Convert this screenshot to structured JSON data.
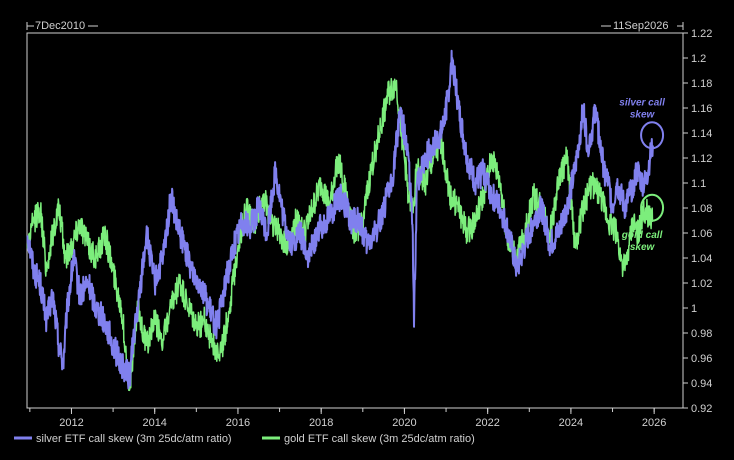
{
  "chart_data": {
    "type": "line",
    "title": "",
    "xlabel": "",
    "ylabel": "",
    "date_range": {
      "start": "7Dec2010",
      "end": "11Sep2026"
    },
    "xlim": [
      "2010-12-07",
      "2026-09-11"
    ],
    "ylim": [
      0.92,
      1.22
    ],
    "y_ticks": [
      "0.92",
      "0.94",
      "0.96",
      "0.98",
      "1",
      "1.02",
      "1.04",
      "1.06",
      "1.08",
      "1.1",
      "1.12",
      "1.14",
      "1.16",
      "1.18",
      "1.2",
      "1.22"
    ],
    "x_ticks": [
      "2012",
      "2014",
      "2016",
      "2018",
      "2020",
      "2022",
      "2024",
      "2026"
    ],
    "grid": false,
    "legend_position": "bottom-left",
    "series": [
      {
        "name": "silver ETF call skew (3m 25dc/atm ratio)",
        "color": "#8080ee",
        "x": [
          2010.94,
          2011.1,
          2011.25,
          2011.4,
          2011.55,
          2011.7,
          2011.8,
          2011.9,
          2012.05,
          2012.2,
          2012.4,
          2012.6,
          2012.8,
          2013.0,
          2013.2,
          2013.4,
          2013.5,
          2013.6,
          2013.8,
          2014.0,
          2014.2,
          2014.4,
          2014.5,
          2014.7,
          2014.9,
          2015.1,
          2015.3,
          2015.5,
          2015.7,
          2015.9,
          2016.1,
          2016.3,
          2016.5,
          2016.7,
          2016.9,
          2017.1,
          2017.3,
          2017.5,
          2017.7,
          2017.9,
          2018.1,
          2018.3,
          2018.5,
          2018.7,
          2018.9,
          2019.1,
          2019.3,
          2019.5,
          2019.7,
          2019.9,
          2020.1,
          2020.2,
          2020.23,
          2020.3,
          2020.5,
          2020.7,
          2020.9,
          2021.05,
          2021.15,
          2021.3,
          2021.5,
          2021.7,
          2021.9,
          2022.1,
          2022.3,
          2022.5,
          2022.7,
          2022.9,
          2023.1,
          2023.3,
          2023.5,
          2023.7,
          2023.9,
          2024.1,
          2024.3,
          2024.4,
          2024.5,
          2024.6,
          2024.7,
          2024.8,
          2024.9,
          2025.0,
          2025.1,
          2025.2,
          2025.3,
          2025.4,
          2025.5,
          2025.6,
          2025.7,
          2025.8,
          2025.9,
          2025.97
        ],
        "values": [
          1.06,
          1.03,
          1.02,
          0.99,
          1.01,
          0.97,
          0.955,
          1.0,
          1.04,
          1.01,
          1.02,
          1.0,
          0.99,
          0.97,
          0.955,
          0.945,
          0.98,
          1.0,
          1.06,
          1.02,
          1.04,
          1.09,
          1.07,
          1.05,
          1.03,
          1.02,
          1.0,
          0.985,
          1.02,
          1.05,
          1.07,
          1.065,
          1.08,
          1.06,
          1.11,
          1.07,
          1.05,
          1.06,
          1.04,
          1.06,
          1.07,
          1.08,
          1.09,
          1.07,
          1.07,
          1.05,
          1.06,
          1.08,
          1.1,
          1.16,
          1.12,
          1.06,
          0.985,
          1.1,
          1.12,
          1.13,
          1.14,
          1.17,
          1.2,
          1.16,
          1.12,
          1.1,
          1.11,
          1.09,
          1.08,
          1.06,
          1.03,
          1.05,
          1.07,
          1.08,
          1.05,
          1.06,
          1.08,
          1.11,
          1.16,
          1.13,
          1.14,
          1.16,
          1.13,
          1.11,
          1.1,
          1.08,
          1.1,
          1.09,
          1.08,
          1.09,
          1.1,
          1.11,
          1.1,
          1.1,
          1.12,
          1.13
        ]
      },
      {
        "name": "gold ETF call skew (3m 25dc/atm ratio)",
        "color": "#7cee7c",
        "x": [
          2010.94,
          2011.1,
          2011.25,
          2011.4,
          2011.55,
          2011.7,
          2011.85,
          2012.0,
          2012.2,
          2012.4,
          2012.6,
          2012.8,
          2013.0,
          2013.2,
          2013.4,
          2013.5,
          2013.6,
          2013.8,
          2014.0,
          2014.2,
          2014.4,
          2014.6,
          2014.8,
          2015.0,
          2015.2,
          2015.4,
          2015.6,
          2015.8,
          2016.0,
          2016.2,
          2016.4,
          2016.6,
          2016.8,
          2017.0,
          2017.2,
          2017.4,
          2017.6,
          2017.8,
          2018.0,
          2018.2,
          2018.4,
          2018.6,
          2018.8,
          2019.0,
          2019.2,
          2019.4,
          2019.6,
          2019.8,
          2020.0,
          2020.1,
          2020.2,
          2020.3,
          2020.5,
          2020.7,
          2020.9,
          2021.1,
          2021.3,
          2021.5,
          2021.7,
          2021.9,
          2022.1,
          2022.3,
          2022.5,
          2022.7,
          2022.9,
          2023.1,
          2023.3,
          2023.5,
          2023.7,
          2023.9,
          2024.1,
          2024.3,
          2024.5,
          2024.7,
          2024.9,
          2025.1,
          2025.2,
          2025.3,
          2025.4,
          2025.5,
          2025.6,
          2025.7,
          2025.8,
          2025.9,
          2025.97
        ],
        "values": [
          1.05,
          1.07,
          1.08,
          1.03,
          1.06,
          1.08,
          1.04,
          1.05,
          1.07,
          1.05,
          1.04,
          1.06,
          1.03,
          1.0,
          0.935,
          0.97,
          1.0,
          0.97,
          0.99,
          0.975,
          1.0,
          1.02,
          1.0,
          0.985,
          0.99,
          0.97,
          0.965,
          1.0,
          1.05,
          1.08,
          1.065,
          1.09,
          1.07,
          1.06,
          1.05,
          1.07,
          1.06,
          1.08,
          1.1,
          1.08,
          1.12,
          1.09,
          1.06,
          1.07,
          1.11,
          1.14,
          1.17,
          1.18,
          1.12,
          1.09,
          1.08,
          1.11,
          1.1,
          1.12,
          1.13,
          1.09,
          1.08,
          1.06,
          1.07,
          1.09,
          1.12,
          1.1,
          1.05,
          1.04,
          1.06,
          1.09,
          1.08,
          1.06,
          1.1,
          1.12,
          1.05,
          1.08,
          1.1,
          1.09,
          1.07,
          1.06,
          1.04,
          1.03,
          1.05,
          1.07,
          1.06,
          1.07,
          1.08,
          1.07,
          1.07
        ]
      }
    ],
    "annotations": [
      {
        "text_lines": [
          "silver call",
          "skew"
        ],
        "color": "#8080ee",
        "x": 2025.95,
        "y": 1.135
      },
      {
        "text_lines": [
          "gold call",
          "skew"
        ],
        "color": "#7cee7c",
        "x": 2025.95,
        "y": 1.077
      }
    ]
  }
}
